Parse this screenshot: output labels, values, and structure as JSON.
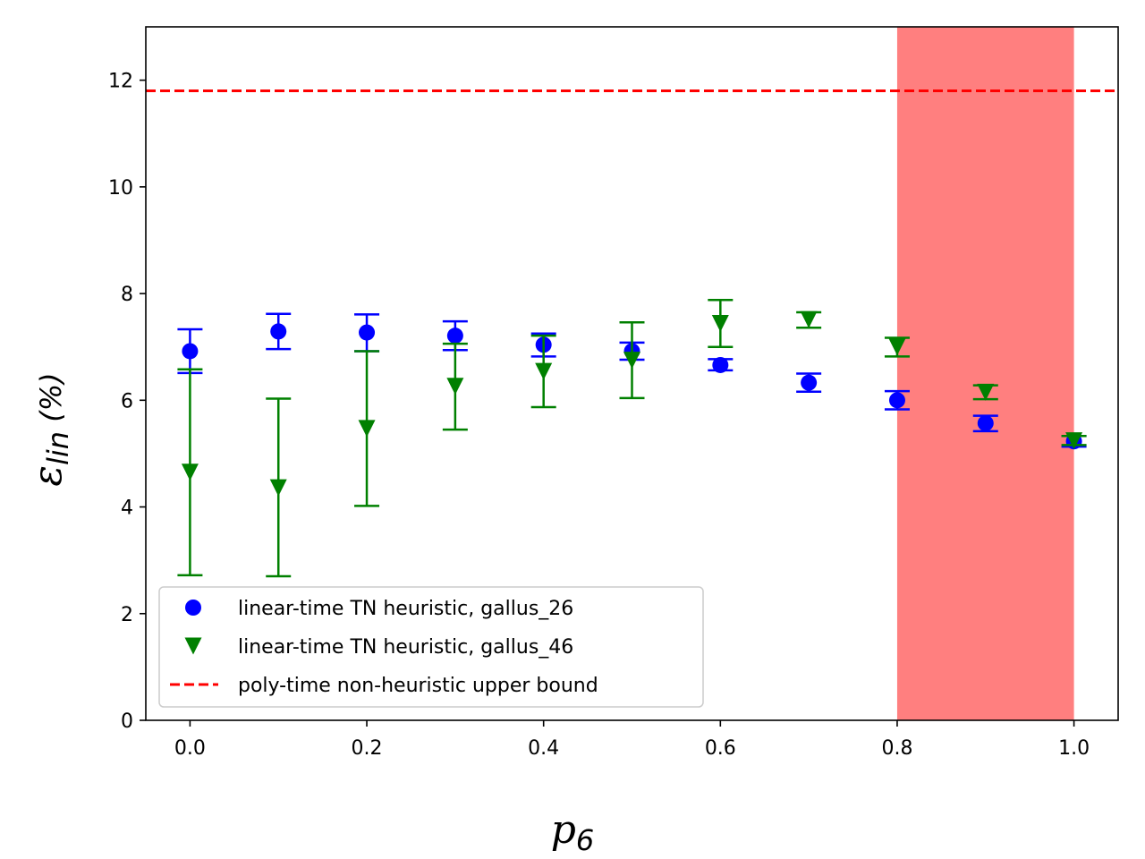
{
  "chart_data": {
    "type": "scatter",
    "title": "",
    "xlabel": {
      "base": "p",
      "sub": "6"
    },
    "ylabel": {
      "base": "ε",
      "sub": "lin",
      "unit": " (%)"
    },
    "xlim": [
      -0.05,
      1.05
    ],
    "ylim": [
      0,
      13
    ],
    "xticks": [
      0.0,
      0.2,
      0.4,
      0.6,
      0.8,
      1.0
    ],
    "xtick_labels": [
      "0.0",
      "0.2",
      "0.4",
      "0.6",
      "0.8",
      "1.0"
    ],
    "yticks": [
      0,
      2,
      4,
      6,
      8,
      10,
      12
    ],
    "ytick_labels": [
      "0",
      "2",
      "4",
      "6",
      "8",
      "10",
      "12"
    ],
    "grid": false,
    "legend_position": "lower-left",
    "shaded_region": {
      "x_start": 0.8,
      "x_end": 1.0,
      "color": "#ff7f7f"
    },
    "reference_line": {
      "name": "poly-time non-heuristic upper bound",
      "y": 11.8,
      "color": "#ff0000",
      "style": "dashed"
    },
    "series": [
      {
        "name": "linear-time TN heuristic, gallus_26",
        "marker": "circle",
        "color": "#0000ff",
        "x": [
          0.0,
          0.1,
          0.2,
          0.3,
          0.4,
          0.5,
          0.6,
          0.7,
          0.8,
          0.9,
          1.0
        ],
        "y": [
          6.92,
          7.29,
          7.27,
          7.21,
          7.04,
          6.92,
          6.66,
          6.33,
          6.0,
          5.57,
          5.23
        ],
        "err_low": [
          6.51,
          6.96,
          6.92,
          6.94,
          6.82,
          6.76,
          6.56,
          6.16,
          5.83,
          5.42,
          5.13
        ],
        "err_high": [
          7.33,
          7.62,
          7.61,
          7.48,
          7.25,
          7.08,
          6.77,
          6.5,
          6.17,
          5.71,
          5.33
        ]
      },
      {
        "name": "linear-time TN heuristic, gallus_46",
        "marker": "triangle-down",
        "color": "#008000",
        "x": [
          0.0,
          0.1,
          0.2,
          0.3,
          0.4,
          0.5,
          0.6,
          0.7,
          0.8,
          0.9,
          1.0
        ],
        "y": [
          4.65,
          4.36,
          5.47,
          6.26,
          6.54,
          6.75,
          7.44,
          7.51,
          7.0,
          6.15,
          5.24
        ],
        "err_low": [
          2.72,
          2.7,
          4.02,
          5.45,
          5.87,
          6.04,
          7.0,
          7.36,
          6.82,
          6.02,
          5.16
        ],
        "err_high": [
          6.58,
          6.03,
          6.92,
          7.06,
          7.21,
          7.46,
          7.88,
          7.65,
          7.17,
          6.28,
          5.33
        ]
      }
    ]
  }
}
